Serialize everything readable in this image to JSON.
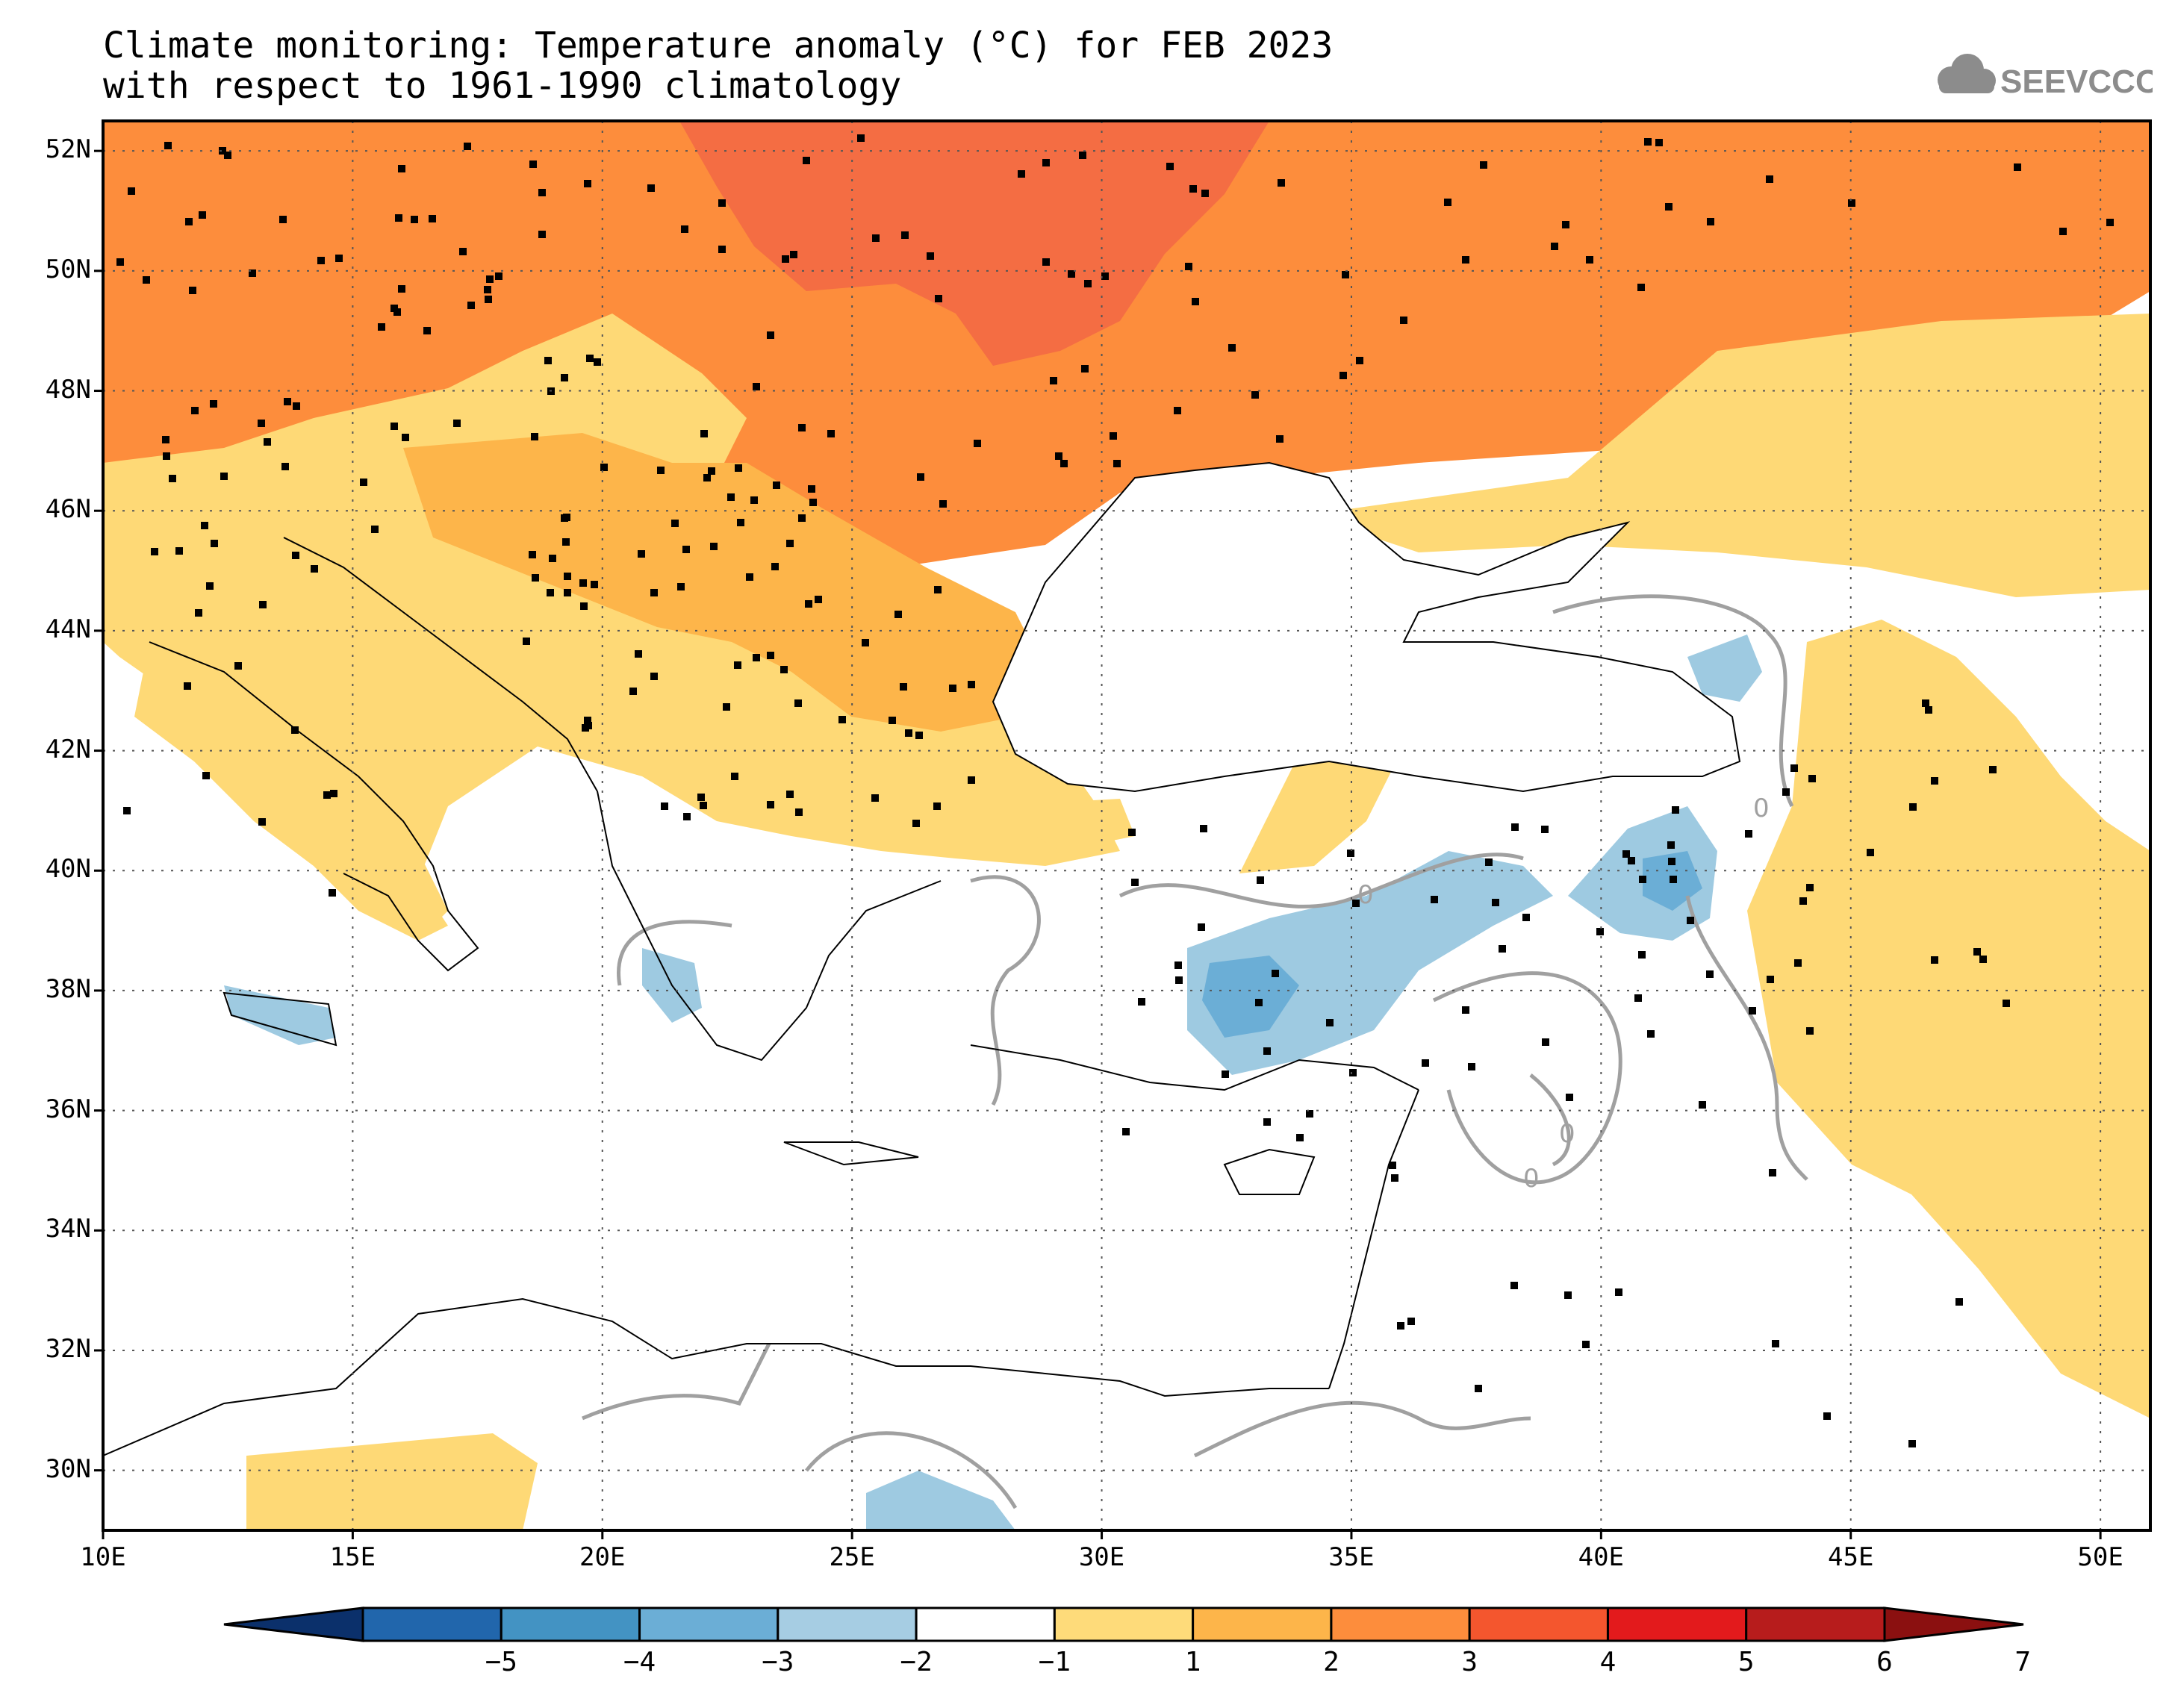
{
  "title": {
    "line1": "Climate monitoring: Temperature anomaly (°C) for FEB 2023",
    "line2": "with respect to 1961-1990 climatology"
  },
  "logo": {
    "text": "SEEVCCC",
    "icon": "cloud-icon",
    "color": "#8c8c8c"
  },
  "map": {
    "lon_range": [
      10,
      51
    ],
    "lat_range": [
      29,
      52.5
    ],
    "lat_ticks": [
      "52N",
      "50N",
      "48N",
      "46N",
      "44N",
      "42N",
      "40N",
      "38N",
      "36N",
      "34N",
      "32N",
      "30N"
    ],
    "lon_ticks": [
      "10E",
      "15E",
      "20E",
      "25E",
      "30E",
      "35E",
      "40E",
      "45E",
      "50E"
    ],
    "grid": "dotted",
    "zero_contour_label": "0",
    "regions": [
      {
        "name": "north-warm",
        "level": "2-3",
        "color": "#fd8d3c"
      },
      {
        "name": "ukraine-hot",
        "level": "3-4",
        "color": "#f46d43"
      },
      {
        "name": "central-warm",
        "level": "1-2",
        "color": "#fed976"
      },
      {
        "name": "anatolia-cool",
        "level": "-1 to -3",
        "color": "#9ecae1"
      }
    ]
  },
  "colorbar": {
    "labels": [
      "-5",
      "-4",
      "-3",
      "-2",
      "-1",
      "1",
      "2",
      "3",
      "4",
      "5",
      "6",
      "7"
    ],
    "colors": [
      "#0b306b",
      "#2166ac",
      "#4393c3",
      "#6baed6",
      "#a6cde3",
      "#ffffff",
      "#fedb7a",
      "#fdb54a",
      "#fd8d3c",
      "#f4562e",
      "#e31a1c",
      "#b71c1c",
      "#8b1010"
    ]
  },
  "colors": {
    "frame": "#000000",
    "contour": "#a0a0a0",
    "station": "#000000"
  }
}
